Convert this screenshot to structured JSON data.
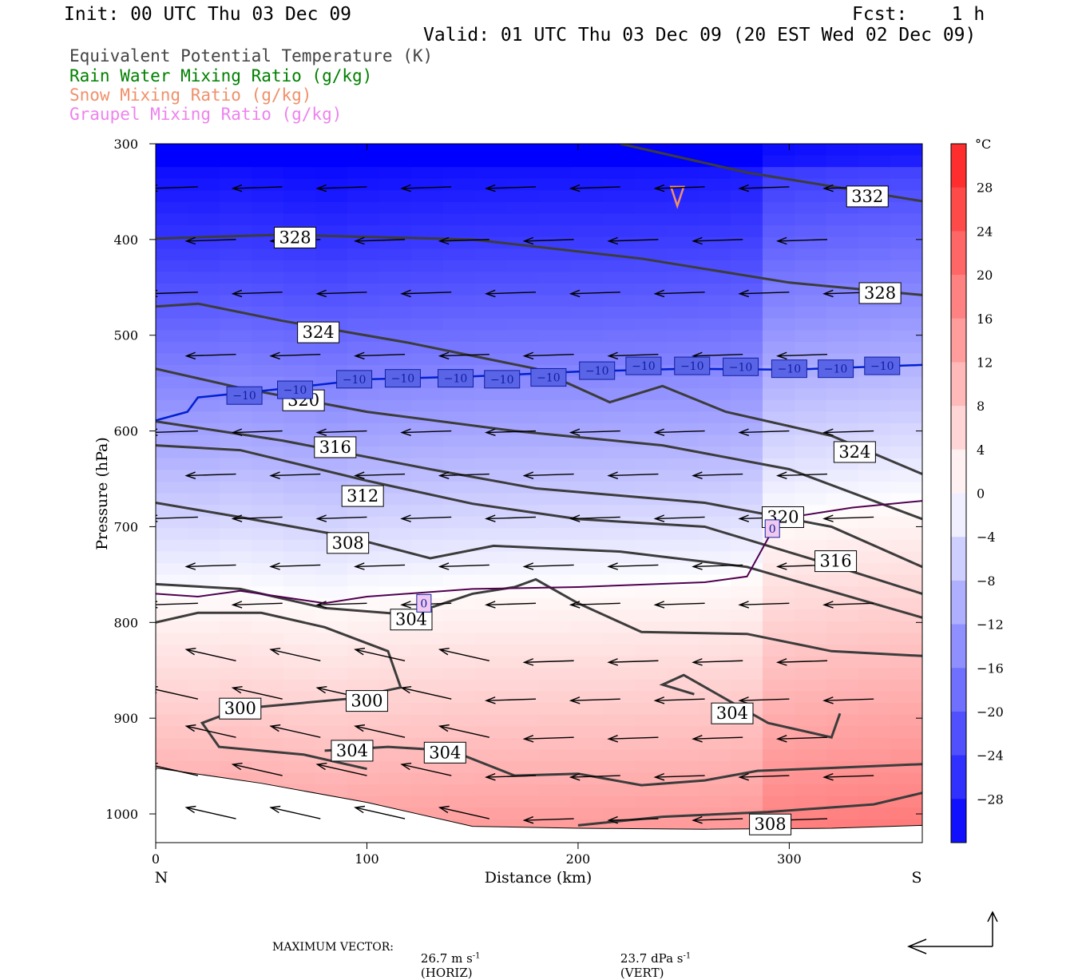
{
  "header": {
    "init": "Init: 00 UTC Thu 03 Dec 09",
    "fcst": "Fcst:    1 h",
    "valid": "Valid: 01 UTC Thu 03 Dec 09 (20 EST Wed 02 Dec 09)"
  },
  "legend": [
    {
      "label": "Equivalent Potential Temperature (K)",
      "color": "#444444"
    },
    {
      "label": "Rain Water Mixing Ratio (g/kg)",
      "color": "#008000"
    },
    {
      "label": "Snow Mixing Ratio (g/kg)",
      "color": "#f0906a"
    },
    {
      "label": "Graupel Mixing Ratio (g/kg)",
      "color": "#ee82ee"
    }
  ],
  "footer": {
    "max_vector_label": "MAXIMUM VECTOR:",
    "horiz_value": "26.7 m s",
    "horiz_unit": "(HORIZ)",
    "vert_value": "23.7 dPa s",
    "vert_unit": "(VERT)",
    "exponent": "-1"
  },
  "chart_data": {
    "type": "heatmap",
    "title": "",
    "xlabel": "Distance (km)",
    "ylabel": "Pressure (hPa)",
    "xlim": [
      0,
      363
    ],
    "ylim": [
      1030,
      300
    ],
    "y_log": false,
    "x_ticks": [
      0,
      100,
      200,
      300
    ],
    "y_ticks": [
      300,
      400,
      500,
      600,
      700,
      800,
      900,
      1000
    ],
    "x_end_labels": {
      "left": "N",
      "right": "S"
    },
    "colorbar": {
      "unit": "°C",
      "ticks": [
        28,
        24,
        20,
        16,
        12,
        8,
        4,
        0,
        -4,
        -8,
        -12,
        -16,
        -20,
        -24,
        -28
      ],
      "range": [
        -32,
        32
      ],
      "cold_color": "#0000ff",
      "warm_color": "#ff2020"
    },
    "theta_e_contours": [
      {
        "level": 332,
        "points": [
          [
            220,
            300
          ],
          [
            280,
            330
          ],
          [
            363,
            360
          ]
        ]
      },
      {
        "level": 328,
        "points": [
          [
            0,
            399
          ],
          [
            60,
            395
          ],
          [
            150,
            400
          ],
          [
            230,
            420
          ],
          [
            300,
            445
          ],
          [
            363,
            458
          ]
        ]
      },
      {
        "level": 324,
        "points": [
          [
            0,
            470
          ],
          [
            20,
            467
          ],
          [
            60,
            485
          ],
          [
            120,
            508
          ],
          [
            180,
            535
          ],
          [
            215,
            570
          ],
          [
            240,
            553
          ],
          [
            270,
            580
          ],
          [
            320,
            605
          ],
          [
            363,
            645
          ]
        ]
      },
      {
        "level": 320,
        "points": [
          [
            0,
            535
          ],
          [
            40,
            555
          ],
          [
            100,
            580
          ],
          [
            170,
            600
          ],
          [
            240,
            615
          ],
          [
            300,
            640
          ],
          [
            363,
            692
          ]
        ]
      },
      {
        "level": 316,
        "points": [
          [
            0,
            590
          ],
          [
            60,
            610
          ],
          [
            130,
            640
          ],
          [
            180,
            660
          ],
          [
            260,
            675
          ],
          [
            320,
            700
          ],
          [
            363,
            742
          ]
        ]
      },
      {
        "level": 312,
        "points": [
          [
            0,
            615
          ],
          [
            40,
            620
          ],
          [
            100,
            652
          ],
          [
            150,
            676
          ],
          [
            200,
            692
          ],
          [
            260,
            700
          ],
          [
            320,
            740
          ],
          [
            363,
            770
          ]
        ]
      },
      {
        "level": 308,
        "points": [
          [
            0,
            675
          ],
          [
            40,
            690
          ],
          [
            90,
            710
          ],
          [
            130,
            733
          ],
          [
            160,
            720
          ],
          [
            220,
            726
          ],
          [
            280,
            742
          ],
          [
            363,
            795
          ]
        ]
      },
      {
        "level": 304,
        "points": [
          [
            0,
            760
          ],
          [
            40,
            765
          ],
          [
            80,
            785
          ],
          [
            120,
            792
          ],
          [
            150,
            770
          ],
          [
            170,
            763
          ],
          [
            180,
            755
          ],
          [
            200,
            780
          ],
          [
            230,
            810
          ],
          [
            280,
            812
          ],
          [
            320,
            830
          ],
          [
            363,
            835
          ]
        ]
      },
      {
        "level": 300,
        "points": [
          [
            0,
            800
          ],
          [
            20,
            790
          ],
          [
            50,
            790
          ],
          [
            80,
            805
          ],
          [
            110,
            830
          ],
          [
            116,
            868
          ],
          [
            90,
            880
          ],
          [
            40,
            890
          ],
          [
            22,
            905
          ],
          [
            30,
            930
          ],
          [
            70,
            938
          ],
          [
            100,
            953
          ]
        ]
      },
      {
        "level": 304,
        "points": [
          [
            80,
            934
          ],
          [
            110,
            930
          ],
          [
            140,
            934
          ],
          [
            170,
            960
          ],
          [
            200,
            958
          ],
          [
            230,
            970
          ],
          [
            260,
            965
          ],
          [
            285,
            955
          ],
          [
            320,
            952
          ],
          [
            363,
            948
          ]
        ]
      },
      {
        "level": 304,
        "points": [
          [
            255,
            875
          ],
          [
            240,
            865
          ],
          [
            250,
            855
          ],
          [
            270,
            880
          ],
          [
            290,
            905
          ],
          [
            320,
            920
          ],
          [
            324,
            895
          ]
        ]
      },
      {
        "level": 308,
        "points": [
          [
            200,
            1012
          ],
          [
            240,
            1003
          ],
          [
            290,
            998
          ],
          [
            340,
            990
          ],
          [
            363,
            978
          ]
        ]
      }
    ],
    "minus10_isotherm": [
      [
        0,
        589
      ],
      [
        15,
        580
      ],
      [
        20,
        565
      ],
      [
        60,
        556
      ],
      [
        100,
        546
      ],
      [
        150,
        543
      ],
      [
        200,
        538
      ],
      [
        250,
        535
      ],
      [
        300,
        536
      ],
      [
        363,
        531
      ]
    ],
    "zero_isotherm": [
      [
        0,
        770
      ],
      [
        20,
        773
      ],
      [
        40,
        767
      ],
      [
        80,
        780
      ],
      [
        100,
        773
      ],
      [
        150,
        765
      ],
      [
        200,
        763
      ],
      [
        260,
        758
      ],
      [
        280,
        752
      ],
      [
        295,
        692
      ],
      [
        330,
        680
      ],
      [
        363,
        673
      ]
    ],
    "contour_labels": [
      {
        "text": "332",
        "x": 337,
        "y": 355
      },
      {
        "text": "328",
        "x": 66,
        "y": 398
      },
      {
        "text": "328",
        "x": 343,
        "y": 456
      },
      {
        "text": "324",
        "x": 77,
        "y": 497
      },
      {
        "text": "324",
        "x": 331,
        "y": 622
      },
      {
        "text": "320",
        "x": 70,
        "y": 568
      },
      {
        "text": "320",
        "x": 297,
        "y": 690
      },
      {
        "text": "316",
        "x": 85,
        "y": 617
      },
      {
        "text": "316",
        "x": 322,
        "y": 736
      },
      {
        "text": "312",
        "x": 98,
        "y": 668
      },
      {
        "text": "308",
        "x": 91,
        "y": 717
      },
      {
        "text": "308",
        "x": 291,
        "y": 1011
      },
      {
        "text": "304",
        "x": 121,
        "y": 797
      },
      {
        "text": "304",
        "x": 273,
        "y": 895
      },
      {
        "text": "304",
        "x": 93,
        "y": 934
      },
      {
        "text": "304",
        "x": 137,
        "y": 936
      },
      {
        "text": "300",
        "x": 40,
        "y": 890
      },
      {
        "text": "300",
        "x": 100,
        "y": 882
      }
    ],
    "isotherm_labels": [
      {
        "text": "−10",
        "x": 42,
        "y": 563
      },
      {
        "text": "−10",
        "x": 66,
        "y": 557
      },
      {
        "text": "−10",
        "x": 94,
        "y": 546
      },
      {
        "text": "−10",
        "x": 117,
        "y": 545
      },
      {
        "text": "−10",
        "x": 142,
        "y": 545
      },
      {
        "text": "−10",
        "x": 164,
        "y": 546
      },
      {
        "text": "−10",
        "x": 186,
        "y": 544
      },
      {
        "text": "−10",
        "x": 209,
        "y": 537
      },
      {
        "text": "−10",
        "x": 231,
        "y": 532
      },
      {
        "text": "−10",
        "x": 254,
        "y": 532
      },
      {
        "text": "−10",
        "x": 277,
        "y": 533
      },
      {
        "text": "−10",
        "x": 300,
        "y": 535
      },
      {
        "text": "−10",
        "x": 322,
        "y": 535
      },
      {
        "text": "−10",
        "x": 344,
        "y": 532
      },
      {
        "text": "0",
        "x": 127,
        "y": 780
      },
      {
        "text": "0",
        "x": 292,
        "y": 702
      }
    ],
    "wind_arrows": [
      {
        "x": [
          20,
          40,
          60,
          80,
          100,
          120,
          140,
          160,
          180,
          200,
          220,
          240,
          260,
          280,
          300,
          320,
          340,
          360
        ],
        "p": [
          340,
          350,
          360,
          370,
          380,
          390,
          400,
          410,
          420,
          430,
          440,
          450,
          460,
          470,
          480,
          490,
          500,
          510
        ],
        "u": -20,
        "w": 1
      }
    ],
    "snow_contour": [
      [
        244,
        345
      ],
      [
        250,
        345
      ],
      [
        247,
        365
      ]
    ]
  }
}
